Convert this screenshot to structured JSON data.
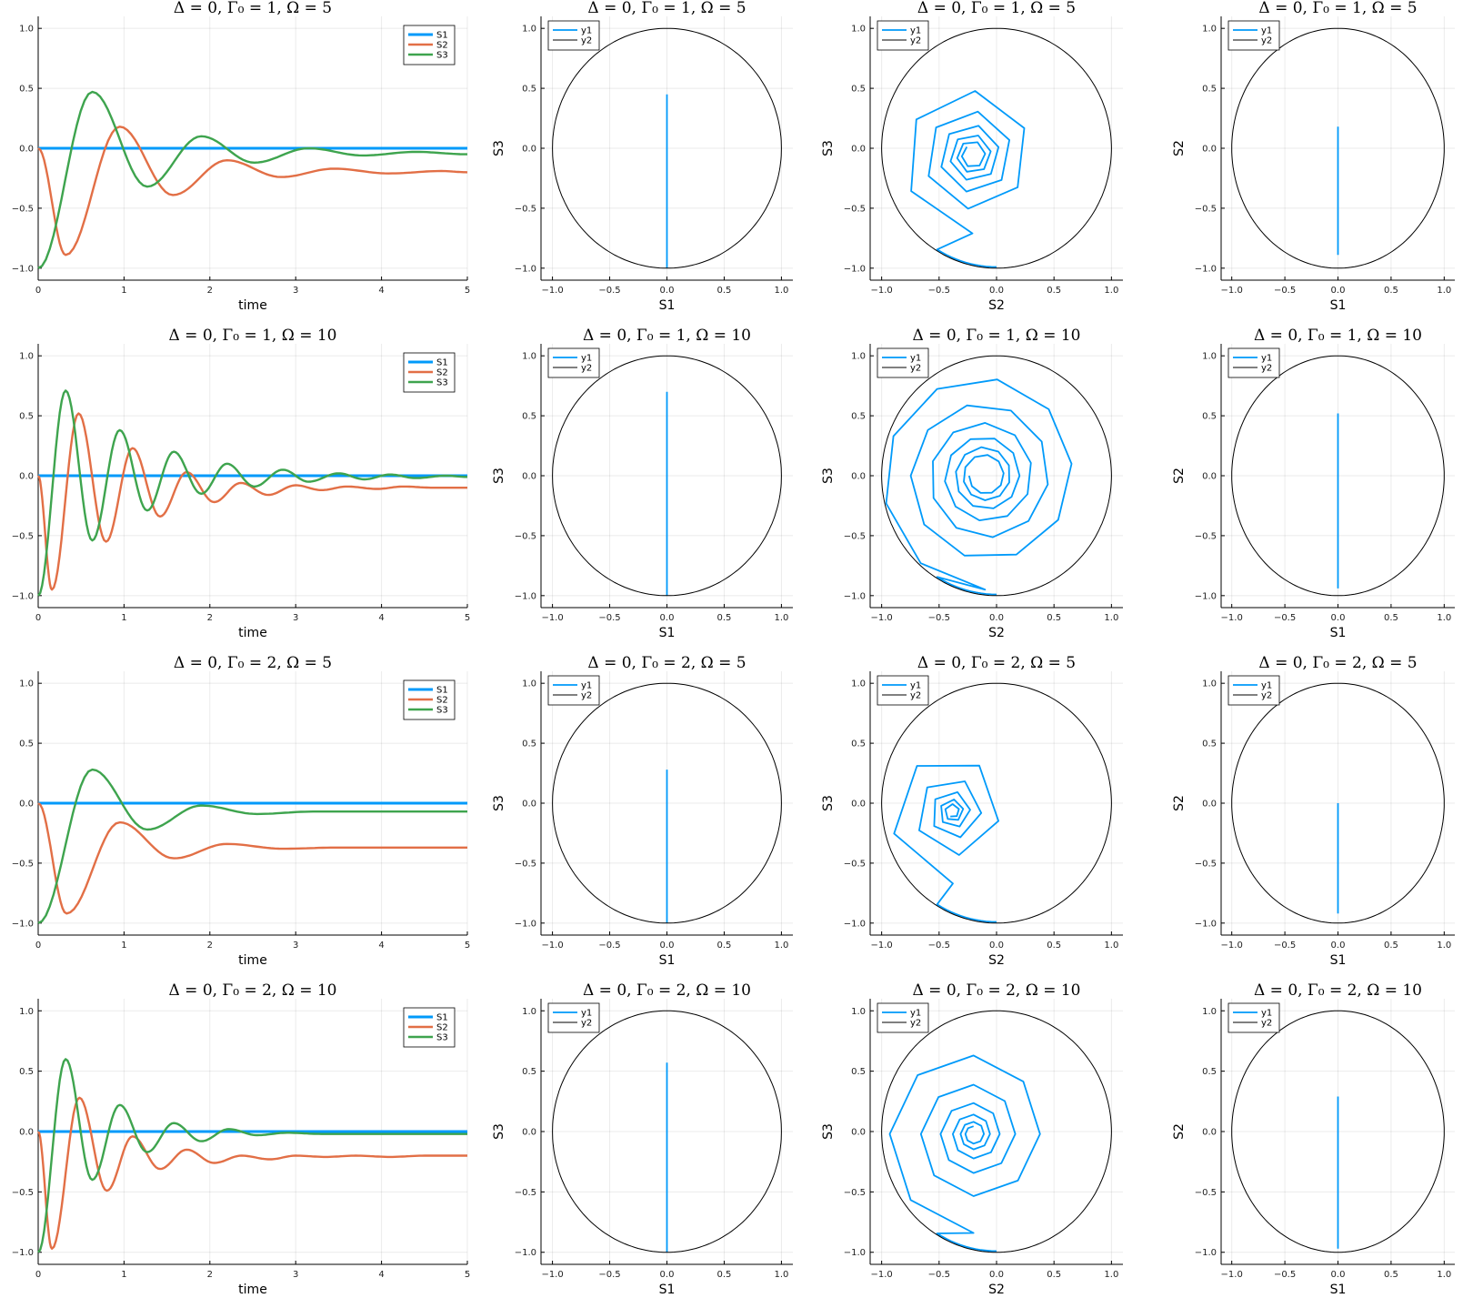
{
  "colors": {
    "S1": "#009AFA",
    "S2": "#E26F46",
    "S3": "#3EA44E",
    "circle": "#000000"
  },
  "chart_data": [
    {
      "panel": "r1c1",
      "type": "line",
      "title": "Δ = 0, Γ₀ = 1, Ω = 5",
      "xlabel": "time",
      "ylabel": "",
      "xlim": [
        0,
        5
      ],
      "ylim": [
        -1.1,
        1.1
      ],
      "xticks": [
        "0",
        "1",
        "2",
        "3",
        "4",
        "5"
      ],
      "yticks": [
        "-1.0",
        "-0.5",
        "0.0",
        "0.5",
        "1.0"
      ],
      "legend": "top-right",
      "series": [
        {
          "name": "S1",
          "x": [
            0,
            5
          ],
          "y": [
            0,
            0
          ]
        },
        {
          "name": "S2",
          "x": [
            0,
            0.32,
            0.95,
            1.57,
            2.2,
            2.83,
            3.45,
            4.08,
            4.7,
            5
          ],
          "y": [
            0,
            -0.89,
            0.18,
            -0.39,
            -0.1,
            -0.24,
            -0.17,
            -0.21,
            -0.19,
            -0.2
          ]
        },
        {
          "name": "S3",
          "x": [
            0,
            0.63,
            1.27,
            1.9,
            2.52,
            3.15,
            3.78,
            4.4,
            5
          ],
          "y": [
            -1,
            0.47,
            -0.32,
            0.1,
            -0.12,
            0,
            -0.06,
            -0.03,
            -0.05
          ]
        }
      ]
    },
    {
      "panel": "r1c2",
      "type": "line",
      "title": "Δ = 0, Γ₀ = 1, Ω = 5",
      "xlabel": "S1",
      "ylabel": "S3",
      "xlim": [
        -1.1,
        1.1
      ],
      "ylim": [
        -1.1,
        1.1
      ],
      "xticks": [
        "-1.0",
        "-0.5",
        "0.0",
        "0.5",
        "1.0"
      ],
      "yticks": [
        "-1.0",
        "-0.5",
        "0.0",
        "0.5",
        "1.0"
      ],
      "legend": "top-left",
      "series": [
        {
          "name": "y1",
          "x": [
            0,
            0
          ],
          "y": [
            -1,
            0.45
          ]
        },
        {
          "name": "y2",
          "circle": true
        }
      ]
    },
    {
      "panel": "r1c3",
      "type": "line",
      "title": "Δ = 0, Γ₀ = 1, Ω = 5",
      "xlabel": "S2",
      "ylabel": "S3",
      "xlim": [
        -1.1,
        1.1
      ],
      "ylim": [
        -1.1,
        1.1
      ],
      "xticks": [
        "-1.0",
        "-0.5",
        "0.0",
        "0.5",
        "1.0"
      ],
      "yticks": [
        "-1.0",
        "-0.5",
        "0.0",
        "0.5",
        "1.0"
      ],
      "legend": "top-left",
      "series": [
        {
          "name": "y1",
          "spiral": {
            "cx": -0.21,
            "cy": -0.06,
            "r0": 0.65,
            "k": 0.17,
            "p": 3.7,
            "rot": -45,
            "n": 32
          }
        },
        {
          "name": "y2",
          "circle": true
        }
      ]
    },
    {
      "panel": "r1c4",
      "type": "line",
      "title": "Δ = 0, Γ₀ = 1, Ω = 5",
      "xlabel": "S1",
      "ylabel": "S2",
      "xlim": [
        -1.1,
        1.1
      ],
      "ylim": [
        -1.1,
        1.1
      ],
      "xticks": [
        "-1.0",
        "-0.5",
        "0.0",
        "0.5",
        "1.0"
      ],
      "yticks": [
        "-1.0",
        "-0.5",
        "0.0",
        "0.5",
        "1.0"
      ],
      "legend": "top-left",
      "series": [
        {
          "name": "y1",
          "x": [
            0,
            0
          ],
          "y": [
            -0.89,
            0.18
          ]
        },
        {
          "name": "y2",
          "circle": true
        }
      ]
    },
    {
      "panel": "r2c1",
      "type": "line",
      "title": "Δ = 0, Γ₀ = 1, Ω = 10",
      "xlabel": "time",
      "ylabel": "",
      "xlim": [
        0,
        5
      ],
      "ylim": [
        -1.1,
        1.1
      ],
      "xticks": [
        "0",
        "1",
        "2",
        "3",
        "4",
        "5"
      ],
      "yticks": [
        "-1.0",
        "-0.5",
        "0.0",
        "0.5",
        "1.0"
      ],
      "legend": "top-right",
      "series": [
        {
          "name": "S1",
          "x": [
            0,
            5
          ],
          "y": [
            0,
            0
          ]
        },
        {
          "name": "S2",
          "x": [
            0,
            0.16,
            0.47,
            0.79,
            1.1,
            1.42,
            1.73,
            2.05,
            2.36,
            2.68,
            3,
            3.3,
            3.6,
            3.95,
            4.25,
            4.6,
            5
          ],
          "y": [
            0,
            -0.95,
            0.52,
            -0.55,
            0.23,
            -0.34,
            0.03,
            -0.22,
            -0.06,
            -0.16,
            -0.08,
            -0.12,
            -0.09,
            -0.11,
            -0.09,
            -0.1,
            -0.1
          ]
        },
        {
          "name": "S3",
          "x": [
            0,
            0.32,
            0.63,
            0.95,
            1.27,
            1.58,
            1.9,
            2.2,
            2.52,
            2.85,
            3.15,
            3.5,
            3.8,
            4.1,
            4.4,
            4.75,
            5
          ],
          "y": [
            -1,
            0.71,
            -0.54,
            0.38,
            -0.29,
            0.2,
            -0.15,
            0.1,
            -0.09,
            0.05,
            -0.05,
            0.02,
            -0.03,
            0.01,
            -0.02,
            0,
            -0.01
          ]
        }
      ]
    },
    {
      "panel": "r2c2",
      "type": "line",
      "title": "Δ = 0, Γ₀ = 1, Ω = 10",
      "xlabel": "S1",
      "ylabel": "S3",
      "xlim": [
        -1.1,
        1.1
      ],
      "ylim": [
        -1.1,
        1.1
      ],
      "xticks": [
        "-1.0",
        "-0.5",
        "0.0",
        "0.5",
        "1.0"
      ],
      "yticks": [
        "-1.0",
        "-0.5",
        "0.0",
        "0.5",
        "1.0"
      ],
      "legend": "top-left",
      "series": [
        {
          "name": "y1",
          "x": [
            0,
            0
          ],
          "y": [
            -1,
            0.7
          ]
        },
        {
          "name": "y2",
          "circle": true
        }
      ]
    },
    {
      "panel": "r2c3",
      "type": "line",
      "title": "Δ = 0, Γ₀ = 1, Ω = 10",
      "xlabel": "S2",
      "ylabel": "S3",
      "xlim": [
        -1.1,
        1.1
      ],
      "ylim": [
        -1.1,
        1.1
      ],
      "xticks": [
        "-1.0",
        "-0.5",
        "0.0",
        "0.5",
        "1.0"
      ],
      "yticks": [
        "-1.0",
        "-0.5",
        "0.0",
        "0.5",
        "1.0"
      ],
      "legend": "top-left",
      "series": [
        {
          "name": "y1",
          "spiral": {
            "cx": -0.1,
            "cy": 0,
            "r0": 0.95,
            "k": 0.1,
            "p": 6,
            "rot": -65,
            "n": 60
          }
        },
        {
          "name": "y2",
          "circle": true
        }
      ]
    },
    {
      "panel": "r2c4",
      "type": "line",
      "title": "Δ = 0, Γ₀ = 1, Ω = 10",
      "xlabel": "S1",
      "ylabel": "S2",
      "xlim": [
        -1.1,
        1.1
      ],
      "ylim": [
        -1.1,
        1.1
      ],
      "xticks": [
        "-1.0",
        "-0.5",
        "0.0",
        "0.5",
        "1.0"
      ],
      "yticks": [
        "-1.0",
        "-0.5",
        "0.0",
        "0.5",
        "1.0"
      ],
      "legend": "top-left",
      "series": [
        {
          "name": "y1",
          "x": [
            0,
            0
          ],
          "y": [
            -0.94,
            0.52
          ]
        },
        {
          "name": "y2",
          "circle": true
        }
      ]
    },
    {
      "panel": "r3c1",
      "type": "line",
      "title": "Δ = 0, Γ₀ = 2, Ω = 5",
      "xlabel": "time",
      "ylabel": "",
      "xlim": [
        0,
        5
      ],
      "ylim": [
        -1.1,
        1.1
      ],
      "xticks": [
        "0",
        "1",
        "2",
        "3",
        "4",
        "5"
      ],
      "yticks": [
        "-1.0",
        "-0.5",
        "0.0",
        "0.5",
        "1.0"
      ],
      "legend": "top-right",
      "series": [
        {
          "name": "S1",
          "x": [
            0,
            5
          ],
          "y": [
            0,
            0
          ]
        },
        {
          "name": "S2",
          "x": [
            0,
            0.33,
            0.95,
            1.58,
            2.2,
            2.85,
            3.5,
            4.2,
            5
          ],
          "y": [
            0,
            -0.92,
            -0.16,
            -0.46,
            -0.34,
            -0.38,
            -0.37,
            -0.37,
            -0.37
          ]
        },
        {
          "name": "S3",
          "x": [
            0,
            0.63,
            1.27,
            1.9,
            2.55,
            3.2,
            3.9,
            4.5,
            5
          ],
          "y": [
            -1,
            0.28,
            -0.22,
            -0.02,
            -0.09,
            -0.07,
            -0.07,
            -0.07,
            -0.07
          ]
        }
      ]
    },
    {
      "panel": "r3c2",
      "type": "line",
      "title": "Δ = 0, Γ₀ = 2, Ω = 5",
      "xlabel": "S1",
      "ylabel": "S3",
      "xlim": [
        -1.1,
        1.1
      ],
      "ylim": [
        -1.1,
        1.1
      ],
      "xticks": [
        "-1.0",
        "-0.5",
        "0.0",
        "0.5",
        "1.0"
      ],
      "yticks": [
        "-1.0",
        "-0.5",
        "0.0",
        "0.5",
        "1.0"
      ],
      "legend": "top-left",
      "series": [
        {
          "name": "y1",
          "x": [
            0,
            0
          ],
          "y": [
            -1,
            0.28
          ]
        },
        {
          "name": "y2",
          "circle": true
        }
      ]
    },
    {
      "panel": "r3c3",
      "type": "line",
      "title": "Δ = 0, Γ₀ = 2, Ω = 5",
      "xlabel": "S2",
      "ylabel": "S3",
      "xlim": [
        -1.1,
        1.1
      ],
      "ylim": [
        -1.1,
        1.1
      ],
      "xticks": [
        "-1.0",
        "-0.5",
        "0.0",
        "0.5",
        "1.0"
      ],
      "yticks": [
        "-1.0",
        "-0.5",
        "0.0",
        "0.5",
        "1.0"
      ],
      "legend": "top-left",
      "series": [
        {
          "name": "y1",
          "spiral": {
            "cx": -0.38,
            "cy": -0.07,
            "r0": 0.6,
            "k": 0.25,
            "p": 3.2,
            "rot": -30,
            "n": 26
          }
        },
        {
          "name": "y2",
          "circle": true
        }
      ]
    },
    {
      "panel": "r3c4",
      "type": "line",
      "title": "Δ = 0, Γ₀ = 2, Ω = 5",
      "xlabel": "S1",
      "ylabel": "S2",
      "xlim": [
        -1.1,
        1.1
      ],
      "ylim": [
        -1.1,
        1.1
      ],
      "xticks": [
        "-1.0",
        "-0.5",
        "0.0",
        "0.5",
        "1.0"
      ],
      "yticks": [
        "-1.0",
        "-0.5",
        "0.0",
        "0.5",
        "1.0"
      ],
      "legend": "top-left",
      "series": [
        {
          "name": "y1",
          "x": [
            0,
            0
          ],
          "y": [
            -0.92,
            0
          ]
        },
        {
          "name": "y2",
          "circle": true
        }
      ]
    },
    {
      "panel": "r4c1",
      "type": "line",
      "title": "Δ = 0, Γ₀ = 2, Ω = 10",
      "xlabel": "time",
      "ylabel": "",
      "xlim": [
        0,
        5
      ],
      "ylim": [
        -1.1,
        1.1
      ],
      "xticks": [
        "0",
        "1",
        "2",
        "3",
        "4",
        "5"
      ],
      "yticks": [
        "-1.0",
        "-0.5",
        "0.0",
        "0.5",
        "1.0"
      ],
      "legend": "top-right",
      "series": [
        {
          "name": "S1",
          "x": [
            0,
            5
          ],
          "y": [
            0,
            0
          ]
        },
        {
          "name": "S2",
          "x": [
            0,
            0.16,
            0.48,
            0.8,
            1.1,
            1.42,
            1.73,
            2.05,
            2.37,
            2.7,
            3.0,
            3.35,
            3.7,
            4.1,
            4.5,
            5
          ],
          "y": [
            0,
            -0.97,
            0.28,
            -0.49,
            -0.04,
            -0.31,
            -0.15,
            -0.26,
            -0.2,
            -0.23,
            -0.2,
            -0.21,
            -0.2,
            -0.21,
            -0.2,
            -0.2
          ]
        },
        {
          "name": "S3",
          "x": [
            0,
            0.32,
            0.63,
            0.95,
            1.27,
            1.58,
            1.9,
            2.22,
            2.55,
            2.9,
            3.3,
            3.7,
            4.2,
            5
          ],
          "y": [
            -1,
            0.6,
            -0.4,
            0.22,
            -0.17,
            0.07,
            -0.08,
            0.02,
            -0.03,
            -0.01,
            -0.02,
            -0.02,
            -0.02,
            -0.02
          ]
        }
      ]
    },
    {
      "panel": "r4c2",
      "type": "line",
      "title": "Δ = 0, Γ₀ = 2, Ω = 10",
      "xlabel": "S1",
      "ylabel": "S3",
      "xlim": [
        -1.1,
        1.1
      ],
      "ylim": [
        -1.1,
        1.1
      ],
      "xticks": [
        "-1.0",
        "-0.5",
        "0.0",
        "0.5",
        "1.0"
      ],
      "yticks": [
        "-1.0",
        "-0.5",
        "0.0",
        "0.5",
        "1.0"
      ],
      "legend": "top-left",
      "series": [
        {
          "name": "y1",
          "x": [
            0,
            0
          ],
          "y": [
            -1,
            0.57
          ]
        },
        {
          "name": "y2",
          "circle": true
        }
      ]
    },
    {
      "panel": "r4c3",
      "type": "line",
      "title": "Δ = 0, Γ₀ = 2, Ω = 10",
      "xlabel": "S2",
      "ylabel": "S3",
      "xlim": [
        -1.1,
        1.1
      ],
      "ylim": [
        -1.1,
        1.1
      ],
      "xticks": [
        "-1.0",
        "-0.5",
        "0.0",
        "0.5",
        "1.0"
      ],
      "yticks": [
        "-1.0",
        "-0.5",
        "0.0",
        "0.5",
        "1.0"
      ],
      "legend": "top-left",
      "series": [
        {
          "name": "y1",
          "spiral": {
            "cx": -0.2,
            "cy": -0.02,
            "r0": 0.82,
            "k": 0.16,
            "p": 5,
            "rot": -60,
            "n": 44
          }
        },
        {
          "name": "y2",
          "circle": true
        }
      ]
    },
    {
      "panel": "r4c4",
      "type": "line",
      "title": "Δ = 0, Γ₀ = 2, Ω = 10",
      "xlabel": "S1",
      "ylabel": "S2",
      "xlim": [
        -1.1,
        1.1
      ],
      "ylim": [
        -1.1,
        1.1
      ],
      "xticks": [
        "-1.0",
        "-0.5",
        "0.0",
        "0.5",
        "1.0"
      ],
      "yticks": [
        "-1.0",
        "-0.5",
        "0.0",
        "0.5",
        "1.0"
      ],
      "legend": "top-left",
      "series": [
        {
          "name": "y1",
          "x": [
            0,
            0
          ],
          "y": [
            -0.97,
            0.29
          ]
        },
        {
          "name": "y2",
          "circle": true
        }
      ]
    }
  ]
}
